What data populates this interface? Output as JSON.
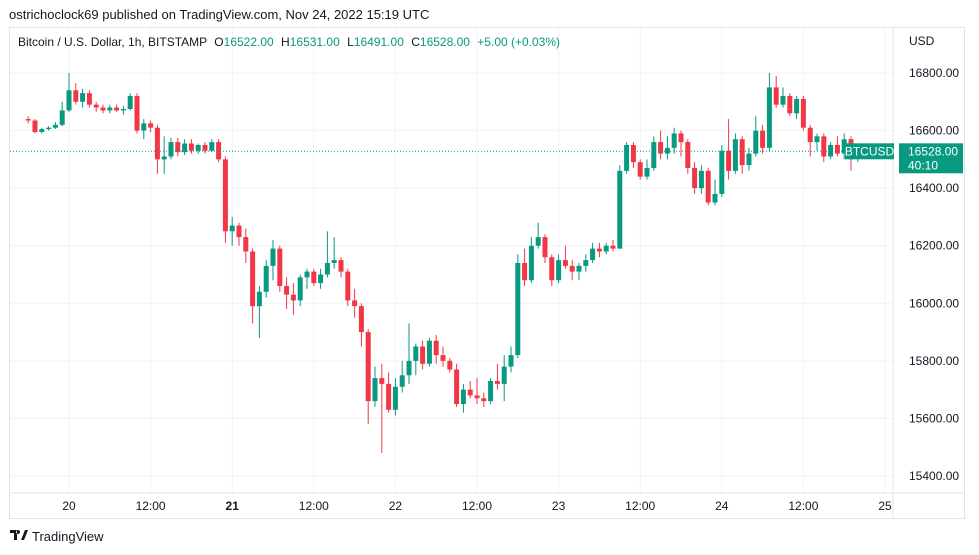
{
  "header": {
    "publisher_text": "ostrichoclock69 published on TradingView.com, Nov 24, 2022 15:19 UTC"
  },
  "legend": {
    "symbol_text": "Bitcoin / U.S. Dollar, 1h, BITSTAMP",
    "o_label": "O",
    "o_value": "16522.00",
    "h_label": "H",
    "h_value": "16531.00",
    "l_label": "L",
    "l_value": "16491.00",
    "c_label": "C",
    "c_value": "16528.00",
    "change": "+5.00 (+0.03%)"
  },
  "footer": {
    "brand": "TradingView"
  },
  "colors": {
    "up": "#089981",
    "down": "#f23645",
    "last_price": "#089981",
    "grid": "#f0f3fa"
  },
  "chart_data": {
    "type": "candlestick",
    "title": "",
    "currency_label": "USD",
    "ylim": [
      15320,
      16860
    ],
    "y_ticks": [
      15400,
      15600,
      15800,
      16000,
      16200,
      16400,
      16600,
      16800
    ],
    "y_tick_labels": [
      "15400.00",
      "15600.00",
      "15800.00",
      "16000.00",
      "16200.00",
      "16400.00",
      "16600.00",
      "16800.00"
    ],
    "x_ticks": [
      {
        "t": 6,
        "label": "20",
        "bold": false
      },
      {
        "t": 18,
        "label": "12:00",
        "bold": false
      },
      {
        "t": 30,
        "label": "21",
        "bold": true
      },
      {
        "t": 42,
        "label": "12:00",
        "bold": false
      },
      {
        "t": 54,
        "label": "22",
        "bold": false
      },
      {
        "t": 66,
        "label": "12:00",
        "bold": false
      },
      {
        "t": 78,
        "label": "23",
        "bold": false
      },
      {
        "t": 90,
        "label": "12:00",
        "bold": false
      },
      {
        "t": 102,
        "label": "24",
        "bold": false
      },
      {
        "t": 114,
        "label": "12:00",
        "bold": false
      },
      {
        "t": 126,
        "label": "25",
        "bold": false
      }
    ],
    "last_price": 16528,
    "last_price_label": "16528.00",
    "countdown_label": "40:10",
    "symbol_tag": "BTCUSD",
    "candles": [
      {
        "o": 16640,
        "h": 16650,
        "l": 16625,
        "c": 16635
      },
      {
        "o": 16635,
        "h": 16640,
        "l": 16590,
        "c": 16595
      },
      {
        "o": 16595,
        "h": 16610,
        "l": 16590,
        "c": 16605
      },
      {
        "o": 16605,
        "h": 16615,
        "l": 16600,
        "c": 16610
      },
      {
        "o": 16610,
        "h": 16630,
        "l": 16605,
        "c": 16620
      },
      {
        "o": 16620,
        "h": 16700,
        "l": 16615,
        "c": 16670
      },
      {
        "o": 16670,
        "h": 16800,
        "l": 16665,
        "c": 16740
      },
      {
        "o": 16740,
        "h": 16765,
        "l": 16690,
        "c": 16700
      },
      {
        "o": 16700,
        "h": 16745,
        "l": 16680,
        "c": 16730
      },
      {
        "o": 16730,
        "h": 16740,
        "l": 16680,
        "c": 16690
      },
      {
        "o": 16690,
        "h": 16700,
        "l": 16665,
        "c": 16680
      },
      {
        "o": 16680,
        "h": 16690,
        "l": 16660,
        "c": 16670
      },
      {
        "o": 16670,
        "h": 16690,
        "l": 16660,
        "c": 16680
      },
      {
        "o": 16680,
        "h": 16690,
        "l": 16665,
        "c": 16670
      },
      {
        "o": 16670,
        "h": 16685,
        "l": 16655,
        "c": 16675
      },
      {
        "o": 16675,
        "h": 16730,
        "l": 16670,
        "c": 16720
      },
      {
        "o": 16720,
        "h": 16730,
        "l": 16590,
        "c": 16600
      },
      {
        "o": 16600,
        "h": 16640,
        "l": 16570,
        "c": 16625
      },
      {
        "o": 16625,
        "h": 16635,
        "l": 16595,
        "c": 16610
      },
      {
        "o": 16610,
        "h": 16620,
        "l": 16450,
        "c": 16500
      },
      {
        "o": 16500,
        "h": 16580,
        "l": 16450,
        "c": 16510
      },
      {
        "o": 16510,
        "h": 16575,
        "l": 16500,
        "c": 16560
      },
      {
        "o": 16560,
        "h": 16575,
        "l": 16510,
        "c": 16525
      },
      {
        "o": 16525,
        "h": 16570,
        "l": 16515,
        "c": 16555
      },
      {
        "o": 16555,
        "h": 16570,
        "l": 16520,
        "c": 16530
      },
      {
        "o": 16530,
        "h": 16555,
        "l": 16520,
        "c": 16550
      },
      {
        "o": 16550,
        "h": 16560,
        "l": 16520,
        "c": 16530
      },
      {
        "o": 16530,
        "h": 16570,
        "l": 16525,
        "c": 16560
      },
      {
        "o": 16560,
        "h": 16570,
        "l": 16490,
        "c": 16500
      },
      {
        "o": 16500,
        "h": 16510,
        "l": 16210,
        "c": 16250
      },
      {
        "o": 16250,
        "h": 16300,
        "l": 16200,
        "c": 16270
      },
      {
        "o": 16270,
        "h": 16280,
        "l": 16200,
        "c": 16230
      },
      {
        "o": 16230,
        "h": 16260,
        "l": 16140,
        "c": 16180
      },
      {
        "o": 16180,
        "h": 16190,
        "l": 15930,
        "c": 15990
      },
      {
        "o": 15990,
        "h": 16060,
        "l": 15880,
        "c": 16040
      },
      {
        "o": 16040,
        "h": 16150,
        "l": 16020,
        "c": 16130
      },
      {
        "o": 16130,
        "h": 16220,
        "l": 16080,
        "c": 16190
      },
      {
        "o": 16190,
        "h": 16200,
        "l": 16040,
        "c": 16060
      },
      {
        "o": 16060,
        "h": 16090,
        "l": 15980,
        "c": 16030
      },
      {
        "o": 16030,
        "h": 16070,
        "l": 15960,
        "c": 16010
      },
      {
        "o": 16010,
        "h": 16100,
        "l": 15990,
        "c": 16090
      },
      {
        "o": 16090,
        "h": 16120,
        "l": 16050,
        "c": 16110
      },
      {
        "o": 16110,
        "h": 16120,
        "l": 16060,
        "c": 16070
      },
      {
        "o": 16070,
        "h": 16120,
        "l": 16050,
        "c": 16100
      },
      {
        "o": 16100,
        "h": 16250,
        "l": 16090,
        "c": 16140
      },
      {
        "o": 16140,
        "h": 16230,
        "l": 16120,
        "c": 16150
      },
      {
        "o": 16150,
        "h": 16160,
        "l": 16090,
        "c": 16110
      },
      {
        "o": 16110,
        "h": 16120,
        "l": 15990,
        "c": 16010
      },
      {
        "o": 16010,
        "h": 16050,
        "l": 15950,
        "c": 15990
      },
      {
        "o": 15990,
        "h": 16000,
        "l": 15850,
        "c": 15900
      },
      {
        "o": 15900,
        "h": 15910,
        "l": 15580,
        "c": 15660
      },
      {
        "o": 15660,
        "h": 15780,
        "l": 15640,
        "c": 15740
      },
      {
        "o": 15740,
        "h": 15790,
        "l": 15480,
        "c": 15720
      },
      {
        "o": 15720,
        "h": 15760,
        "l": 15620,
        "c": 15630
      },
      {
        "o": 15630,
        "h": 15740,
        "l": 15610,
        "c": 15710
      },
      {
        "o": 15710,
        "h": 15800,
        "l": 15690,
        "c": 15750
      },
      {
        "o": 15750,
        "h": 15930,
        "l": 15720,
        "c": 15800
      },
      {
        "o": 15800,
        "h": 15860,
        "l": 15750,
        "c": 15850
      },
      {
        "o": 15850,
        "h": 15870,
        "l": 15770,
        "c": 15790
      },
      {
        "o": 15790,
        "h": 15880,
        "l": 15780,
        "c": 15870
      },
      {
        "o": 15870,
        "h": 15890,
        "l": 15790,
        "c": 15820
      },
      {
        "o": 15820,
        "h": 15850,
        "l": 15780,
        "c": 15800
      },
      {
        "o": 15800,
        "h": 15810,
        "l": 15760,
        "c": 15770
      },
      {
        "o": 15770,
        "h": 15790,
        "l": 15640,
        "c": 15650
      },
      {
        "o": 15650,
        "h": 15720,
        "l": 15620,
        "c": 15700
      },
      {
        "o": 15700,
        "h": 15730,
        "l": 15670,
        "c": 15680
      },
      {
        "o": 15680,
        "h": 15740,
        "l": 15650,
        "c": 15670
      },
      {
        "o": 15670,
        "h": 15690,
        "l": 15640,
        "c": 15660
      },
      {
        "o": 15660,
        "h": 15740,
        "l": 15650,
        "c": 15730
      },
      {
        "o": 15730,
        "h": 15790,
        "l": 15700,
        "c": 15720
      },
      {
        "o": 15720,
        "h": 15820,
        "l": 15660,
        "c": 15780
      },
      {
        "o": 15780,
        "h": 15850,
        "l": 15760,
        "c": 15820
      },
      {
        "o": 15820,
        "h": 16170,
        "l": 15810,
        "c": 16140
      },
      {
        "o": 16140,
        "h": 16190,
        "l": 16060,
        "c": 16080
      },
      {
        "o": 16080,
        "h": 16230,
        "l": 16070,
        "c": 16200
      },
      {
        "o": 16200,
        "h": 16280,
        "l": 16190,
        "c": 16230
      },
      {
        "o": 16230,
        "h": 16240,
        "l": 16140,
        "c": 16160
      },
      {
        "o": 16160,
        "h": 16170,
        "l": 16060,
        "c": 16080
      },
      {
        "o": 16080,
        "h": 16170,
        "l": 16070,
        "c": 16150
      },
      {
        "o": 16150,
        "h": 16200,
        "l": 16120,
        "c": 16130
      },
      {
        "o": 16130,
        "h": 16150,
        "l": 16080,
        "c": 16110
      },
      {
        "o": 16110,
        "h": 16140,
        "l": 16080,
        "c": 16130
      },
      {
        "o": 16130,
        "h": 16170,
        "l": 16110,
        "c": 16150
      },
      {
        "o": 16150,
        "h": 16210,
        "l": 16140,
        "c": 16190
      },
      {
        "o": 16190,
        "h": 16210,
        "l": 16160,
        "c": 16180
      },
      {
        "o": 16180,
        "h": 16210,
        "l": 16170,
        "c": 16200
      },
      {
        "o": 16200,
        "h": 16220,
        "l": 16180,
        "c": 16190
      },
      {
        "o": 16190,
        "h": 16480,
        "l": 16190,
        "c": 16460
      },
      {
        "o": 16460,
        "h": 16560,
        "l": 16450,
        "c": 16550
      },
      {
        "o": 16550,
        "h": 16560,
        "l": 16470,
        "c": 16490
      },
      {
        "o": 16490,
        "h": 16500,
        "l": 16430,
        "c": 16440
      },
      {
        "o": 16440,
        "h": 16500,
        "l": 16430,
        "c": 16470
      },
      {
        "o": 16470,
        "h": 16580,
        "l": 16460,
        "c": 16560
      },
      {
        "o": 16560,
        "h": 16600,
        "l": 16500,
        "c": 16520
      },
      {
        "o": 16520,
        "h": 16580,
        "l": 16500,
        "c": 16540
      },
      {
        "o": 16540,
        "h": 16610,
        "l": 16520,
        "c": 16590
      },
      {
        "o": 16590,
        "h": 16600,
        "l": 16510,
        "c": 16560
      },
      {
        "o": 16560,
        "h": 16570,
        "l": 16450,
        "c": 16470
      },
      {
        "o": 16470,
        "h": 16490,
        "l": 16380,
        "c": 16400
      },
      {
        "o": 16400,
        "h": 16480,
        "l": 16380,
        "c": 16460
      },
      {
        "o": 16460,
        "h": 16470,
        "l": 16340,
        "c": 16350
      },
      {
        "o": 16350,
        "h": 16430,
        "l": 16340,
        "c": 16380
      },
      {
        "o": 16380,
        "h": 16550,
        "l": 16370,
        "c": 16530
      },
      {
        "o": 16530,
        "h": 16640,
        "l": 16430,
        "c": 16460
      },
      {
        "o": 16460,
        "h": 16590,
        "l": 16450,
        "c": 16570
      },
      {
        "o": 16570,
        "h": 16580,
        "l": 16450,
        "c": 16480
      },
      {
        "o": 16480,
        "h": 16540,
        "l": 16460,
        "c": 16520
      },
      {
        "o": 16520,
        "h": 16650,
        "l": 16510,
        "c": 16600
      },
      {
        "o": 16600,
        "h": 16620,
        "l": 16520,
        "c": 16540
      },
      {
        "o": 16540,
        "h": 16800,
        "l": 16530,
        "c": 16750
      },
      {
        "o": 16750,
        "h": 16790,
        "l": 16680,
        "c": 16690
      },
      {
        "o": 16690,
        "h": 16750,
        "l": 16680,
        "c": 16720
      },
      {
        "o": 16720,
        "h": 16730,
        "l": 16650,
        "c": 16660
      },
      {
        "o": 16660,
        "h": 16720,
        "l": 16640,
        "c": 16710
      },
      {
        "o": 16710,
        "h": 16720,
        "l": 16600,
        "c": 16610
      },
      {
        "o": 16610,
        "h": 16620,
        "l": 16510,
        "c": 16560
      },
      {
        "o": 16560,
        "h": 16590,
        "l": 16530,
        "c": 16580
      },
      {
        "o": 16580,
        "h": 16590,
        "l": 16490,
        "c": 16510
      },
      {
        "o": 16510,
        "h": 16560,
        "l": 16500,
        "c": 16550
      },
      {
        "o": 16550,
        "h": 16580,
        "l": 16510,
        "c": 16520
      },
      {
        "o": 16520,
        "h": 16590,
        "l": 16500,
        "c": 16570
      },
      {
        "o": 16570,
        "h": 16580,
        "l": 16460,
        "c": 16500
      },
      {
        "o": 16522,
        "h": 16531,
        "l": 16491,
        "c": 16528
      }
    ]
  }
}
